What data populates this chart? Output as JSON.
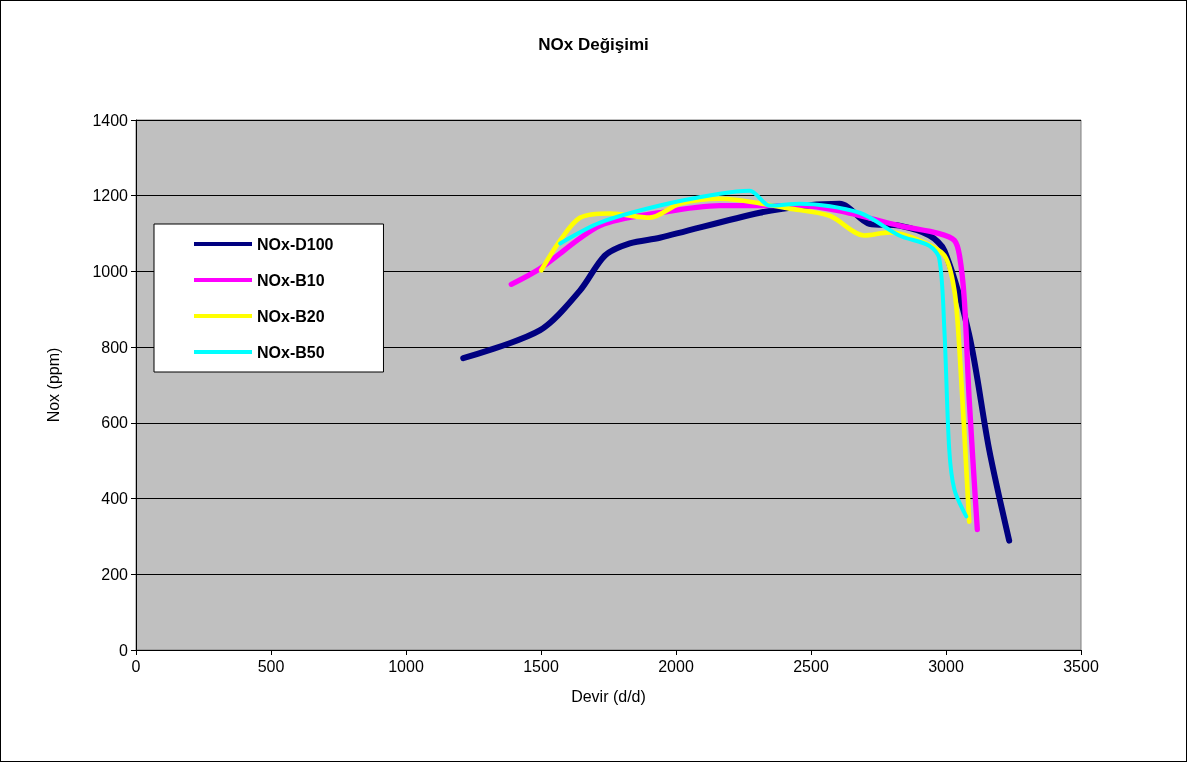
{
  "chart_data": {
    "type": "line",
    "title": "NOx Değişimi",
    "xlabel": "Devir (d/d)",
    "ylabel": "Nox (ppm)",
    "xlim": [
      0,
      3500
    ],
    "xticks": [
      0,
      500,
      1000,
      1500,
      2000,
      2500,
      3000,
      3500
    ],
    "ylim": [
      0,
      1400
    ],
    "yticks": [
      0,
      200,
      400,
      600,
      800,
      1000,
      1200,
      1400
    ],
    "grid": "y",
    "legend": "left",
    "marker": "none",
    "line_style": "solid",
    "series": [
      {
        "name": "NOx-D100",
        "color": "#000080",
        "x": [
          1212,
          1497,
          1645,
          1737,
          1829,
          1940,
          2310,
          2495,
          2606,
          2716,
          2827,
          2938,
          2994,
          3086,
          3160,
          3234
        ],
        "values": [
          771,
          845,
          950,
          1042,
          1074,
          1089,
          1155,
          1175,
          1179,
          1126,
          1121,
          1095,
          1055,
          832,
          529,
          289
        ]
      },
      {
        "name": "NOx-B10",
        "color": "#ff00ff",
        "x": [
          1390,
          1497,
          1719,
          1940,
          2162,
          2458,
          2606,
          2827,
          2975,
          3031,
          3050,
          3068,
          3086,
          3116
        ],
        "values": [
          966,
          1008,
          1121,
          1155,
          1174,
          1174,
          1160,
          1121,
          1100,
          1082,
          1042,
          924,
          661,
          318
        ]
      },
      {
        "name": "NOx-B20",
        "color": "#ffff00",
        "x": [
          1501,
          1571,
          1645,
          1756,
          1903,
          2014,
          2162,
          2421,
          2569,
          2698,
          2790,
          2901,
          2994,
          3031,
          3050,
          3086
        ],
        "values": [
          1003,
          1082,
          1142,
          1153,
          1142,
          1179,
          1192,
          1166,
          1147,
          1095,
          1103,
          1082,
          1042,
          950,
          792,
          339
        ]
      },
      {
        "name": "NOx-B50",
        "color": "#00ffff",
        "x": [
          1571,
          1719,
          1940,
          2162,
          2273,
          2347,
          2458,
          2680,
          2827,
          2938,
          2975,
          2994,
          3012,
          3031,
          3075
        ],
        "values": [
          1074,
          1129,
          1174,
          1205,
          1213,
          1174,
          1179,
          1155,
          1095,
          1068,
          1034,
          845,
          529,
          424,
          353
        ]
      }
    ]
  }
}
